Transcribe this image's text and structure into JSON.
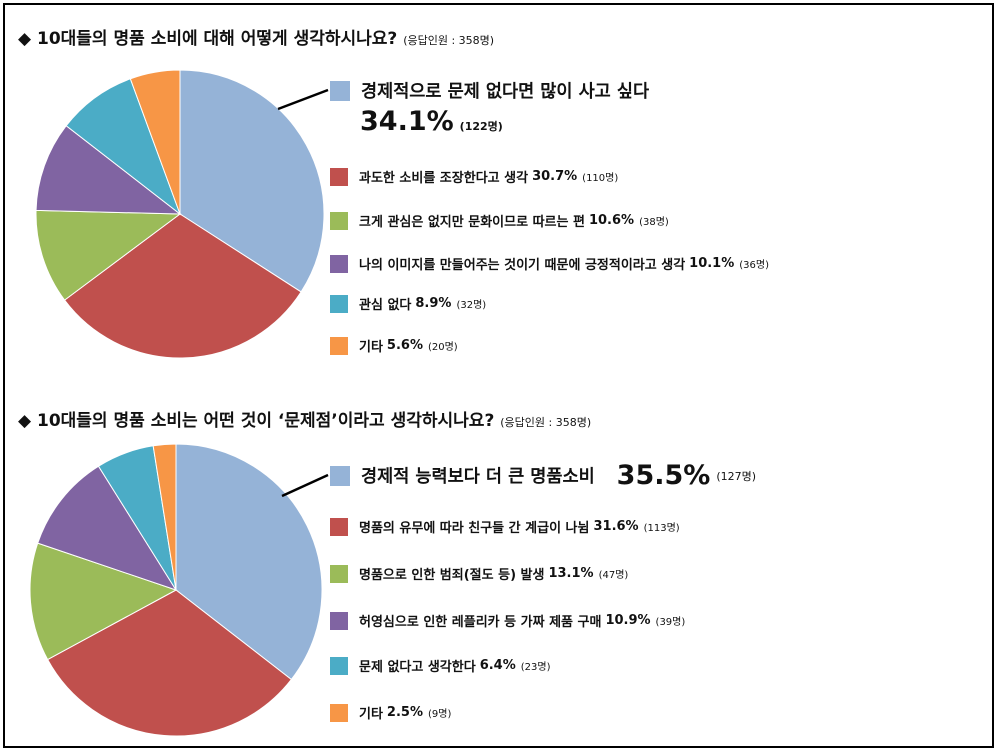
{
  "chart_data": [
    {
      "type": "pie",
      "title": "10대들의 명품 소비에 대해 어떻게 생각하시나요?",
      "note": "(응답인원 : 358명)",
      "colors": [
        "#95b3d7",
        "#c0504d",
        "#9bbb59",
        "#8064a2",
        "#4bacc6",
        "#f79646"
      ],
      "slices": [
        {
          "label": "경제적으로 문제 없다면 많이 사고 싶다",
          "pct": "34.1%",
          "value": 34.1,
          "count": "(122명)"
        },
        {
          "label": "과도한 소비를 조장한다고 생각",
          "pct": "30.7%",
          "value": 30.7,
          "count": "(110명)"
        },
        {
          "label": "크게 관심은 없지만 문화이므로 따르는 편",
          "pct": "10.6%",
          "value": 10.6,
          "count": "(38명)"
        },
        {
          "label": "나의 이미지를 만들어주는 것이기 때문에 긍정적이라고 생각",
          "pct": "10.1%",
          "value": 10.1,
          "count": "(36명)"
        },
        {
          "label": "관심 없다",
          "pct": "8.9%",
          "value": 8.9,
          "count": "(32명)"
        },
        {
          "label": "기타",
          "pct": "5.6%",
          "value": 5.6,
          "count": "(20명)"
        }
      ]
    },
    {
      "type": "pie",
      "title": "10대들의 명품 소비는 어떤 것이 ‘문제점’이라고 생각하시나요?",
      "note": "(응답인원 : 358명)",
      "colors": [
        "#95b3d7",
        "#c0504d",
        "#9bbb59",
        "#8064a2",
        "#4bacc6",
        "#f79646"
      ],
      "slices": [
        {
          "label": "경제적 능력보다 더 큰 명품소비",
          "pct": "35.5%",
          "value": 35.5,
          "count": "(127명)"
        },
        {
          "label": "명품의 유무에 따라 친구들 간 계급이 나뉨",
          "pct": "31.6%",
          "value": 31.6,
          "count": "(113명)"
        },
        {
          "label": "명품으로 인한 범죄(절도 등) 발생",
          "pct": "13.1%",
          "value": 13.1,
          "count": "(47명)"
        },
        {
          "label": "허영심으로 인한 레플리카 등 가짜 제품 구매",
          "pct": "10.9%",
          "value": 10.9,
          "count": "(39명)"
        },
        {
          "label": "문제 없다고 생각한다",
          "pct": "6.4%",
          "value": 6.4,
          "count": "(23명)"
        },
        {
          "label": "기타",
          "pct": "2.5%",
          "value": 2.5,
          "count": "(9명)"
        }
      ]
    }
  ]
}
